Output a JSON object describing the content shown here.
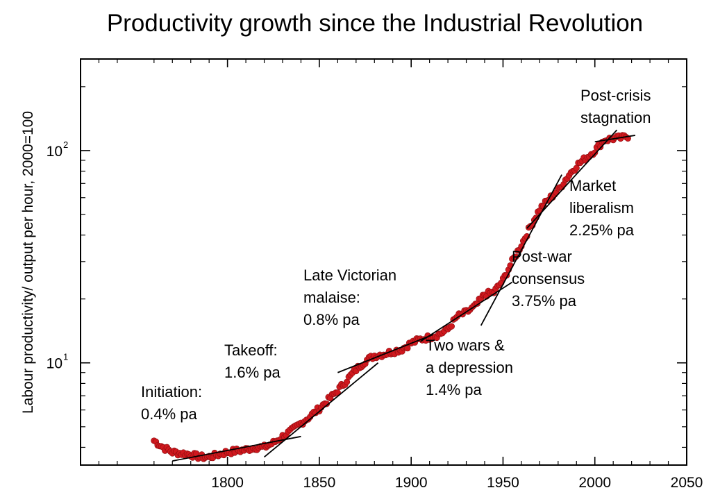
{
  "chart_data": {
    "type": "scatter",
    "title": "Productivity growth since the Industrial Revolution",
    "xlabel": "",
    "ylabel": "Labour productivity/ output per hour, 2000=100",
    "yscale": "log",
    "xlim": [
      1720,
      2050
    ],
    "ylim": [
      3.3,
      270
    ],
    "grid": false,
    "x_ticks": [
      {
        "value": 1800,
        "label": "1800"
      },
      {
        "value": 1850,
        "label": "1850"
      },
      {
        "value": 1900,
        "label": "1900"
      },
      {
        "value": 1950,
        "label": "1950"
      },
      {
        "value": 2000,
        "label": "2000"
      },
      {
        "value": 2050,
        "label": "2050"
      }
    ],
    "y_ticks": [
      {
        "value": 10,
        "base": "10",
        "exp": "1"
      },
      {
        "value": 100,
        "base": "10",
        "exp": "2"
      }
    ],
    "points_color": "#d0181e",
    "points_anchor": [
      [
        1760,
        4.3
      ],
      [
        1765,
        4.0
      ],
      [
        1770,
        3.8
      ],
      [
        1775,
        3.75
      ],
      [
        1780,
        3.7
      ],
      [
        1785,
        3.6
      ],
      [
        1790,
        3.6
      ],
      [
        1795,
        3.7
      ],
      [
        1800,
        3.8
      ],
      [
        1805,
        3.85
      ],
      [
        1810,
        3.9
      ],
      [
        1815,
        4.0
      ],
      [
        1820,
        4.0
      ],
      [
        1825,
        4.2
      ],
      [
        1830,
        4.5
      ],
      [
        1835,
        4.8
      ],
      [
        1840,
        5.2
      ],
      [
        1845,
        5.6
      ],
      [
        1850,
        6.1
      ],
      [
        1855,
        6.7
      ],
      [
        1860,
        7.4
      ],
      [
        1865,
        8.3
      ],
      [
        1870,
        9.3
      ],
      [
        1875,
        10.2
      ],
      [
        1880,
        10.8
      ],
      [
        1885,
        11.0
      ],
      [
        1890,
        11.3
      ],
      [
        1895,
        11.6
      ],
      [
        1900,
        12.4
      ],
      [
        1905,
        12.9
      ],
      [
        1910,
        13.2
      ],
      [
        1915,
        13.6
      ],
      [
        1920,
        14.4
      ],
      [
        1925,
        16.5
      ],
      [
        1930,
        17.3
      ],
      [
        1935,
        18.5
      ],
      [
        1940,
        21.0
      ],
      [
        1945,
        21.5
      ],
      [
        1950,
        24.5
      ],
      [
        1955,
        30.0
      ],
      [
        1960,
        36.0
      ],
      [
        1965,
        44.0
      ],
      [
        1970,
        53.0
      ],
      [
        1975,
        59.0
      ],
      [
        1980,
        65.0
      ],
      [
        1985,
        75.0
      ],
      [
        1990,
        85.0
      ],
      [
        1995,
        92.0
      ],
      [
        2000,
        100.0
      ],
      [
        2005,
        112.0
      ],
      [
        2010,
        114.0
      ],
      [
        2015,
        115.0
      ],
      [
        2018,
        117.0
      ]
    ],
    "trend_segments": [
      {
        "name": "Initiation",
        "x1": 1770,
        "y1": 3.45,
        "x2": 1840,
        "y2": 4.5
      },
      {
        "name": "Takeoff",
        "x1": 1820,
        "y1": 3.6,
        "x2": 1882,
        "y2": 10.0
      },
      {
        "name": "Late Victorian malaise",
        "x1": 1860,
        "y1": 9.0,
        "x2": 1912,
        "y2": 13.6
      },
      {
        "name": "Two wars & a depression",
        "x1": 1905,
        "y1": 12.6,
        "x2": 1955,
        "y2": 24.0
      },
      {
        "name": "Post-war consensus",
        "x1": 1938,
        "y1": 15.0,
        "x2": 1982,
        "y2": 77.0
      },
      {
        "name": "Market liberalism",
        "x1": 1963,
        "y1": 43.0,
        "x2": 2012,
        "y2": 125.0
      },
      {
        "name": "Post-crisis stagnation",
        "x1": 2000,
        "y1": 110.0,
        "x2": 2022,
        "y2": 118.0
      }
    ],
    "annotations": [
      {
        "lines": [
          "Initiation:",
          "0.4% pa"
        ]
      },
      {
        "lines": [
          "Takeoff:",
          "1.6% pa"
        ]
      },
      {
        "lines": [
          "Late Victorian",
          "malaise:",
          "0.8% pa"
        ]
      },
      {
        "lines": [
          "Two wars &",
          "a depression",
          "1.4% pa"
        ]
      },
      {
        "lines": [
          "Post-war",
          "consensus",
          "3.75% pa"
        ]
      },
      {
        "lines": [
          "Market",
          "liberalism",
          "2.25% pa"
        ]
      },
      {
        "lines": [
          "Post-crisis",
          "stagnation"
        ]
      }
    ]
  }
}
